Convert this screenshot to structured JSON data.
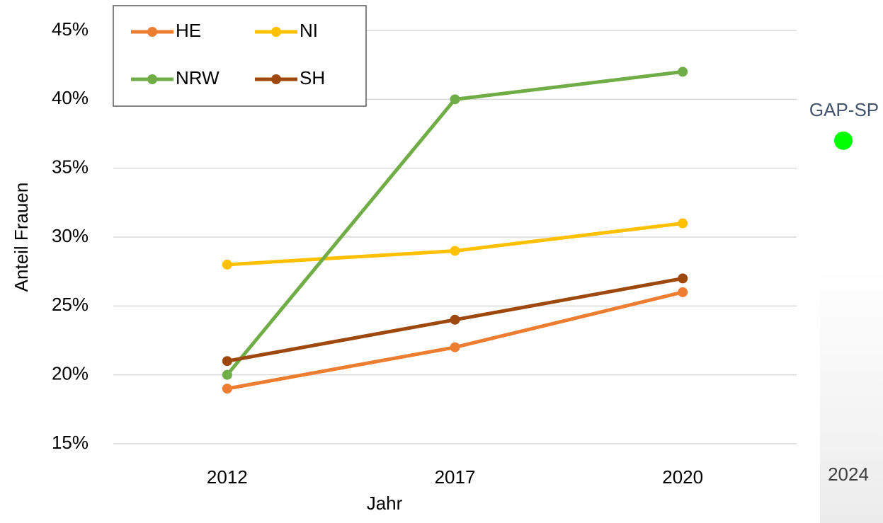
{
  "chart_data": {
    "type": "line",
    "categories": [
      "2012",
      "2017",
      "2020"
    ],
    "series": [
      {
        "name": "HE",
        "color": "#ed7d31",
        "values": [
          19,
          22,
          26
        ]
      },
      {
        "name": "NI",
        "color": "#ffc000",
        "values": [
          28,
          29,
          31
        ]
      },
      {
        "name": "NRW",
        "color": "#70ad47",
        "values": [
          20,
          40,
          42
        ]
      },
      {
        "name": "SH",
        "color": "#9e480e",
        "values": [
          21,
          24,
          27
        ]
      }
    ],
    "ylim": [
      15,
      45
    ],
    "yticks": [
      {
        "value": 15,
        "label": "15%"
      },
      {
        "value": 20,
        "label": "20%"
      },
      {
        "value": 25,
        "label": "25%"
      },
      {
        "value": 30,
        "label": "30%"
      },
      {
        "value": 35,
        "label": "35%"
      },
      {
        "value": 40,
        "label": "40%"
      },
      {
        "value": 45,
        "label": "45%"
      }
    ],
    "grid": true,
    "xlabel": "Jahr",
    "ylabel": "Anteil Frauen",
    "legend": "top-left",
    "annotation": {
      "label": "GAP-SP",
      "category": "2024",
      "value": 37,
      "color": "#00ff00"
    }
  }
}
